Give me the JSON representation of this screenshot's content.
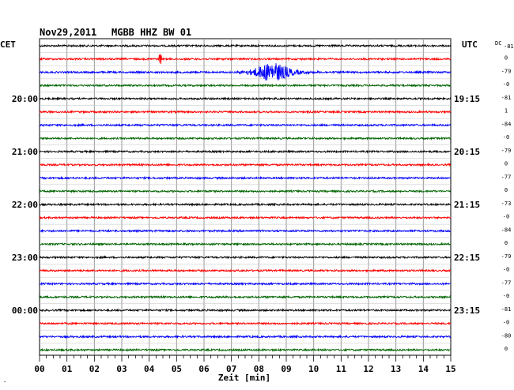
{
  "header": {
    "date": "Nov29,2011",
    "station": "MGBB HHZ BW 01",
    "left_zone": "CET",
    "right_zone": "UTC",
    "dc_label": "DC",
    "dc_header_value": "-81",
    "corner_mark": "-"
  },
  "chart_data": {
    "type": "line",
    "title": "Nov29,2011   MGBB HHZ BW 01",
    "xlabel": "Zeit [min]",
    "ylabel": "",
    "xlim": [
      0,
      15
    ],
    "x_ticks": [
      "00",
      "01",
      "02",
      "03",
      "04",
      "05",
      "06",
      "07",
      "08",
      "09",
      "10",
      "11",
      "12",
      "13",
      "14",
      "15"
    ],
    "grid": true,
    "trace_colors": [
      "#000000",
      "#ff0000",
      "#0000ff",
      "#006400"
    ],
    "traces_per_hour": 4,
    "minutes_per_trace": 15,
    "left_hour_labels": [
      {
        "trace": 4,
        "label": "20:00"
      },
      {
        "trace": 8,
        "label": "21:00"
      },
      {
        "trace": 12,
        "label": "22:00"
      },
      {
        "trace": 16,
        "label": "23:00"
      },
      {
        "trace": 20,
        "label": "00:00"
      }
    ],
    "right_hour_labels": [
      {
        "trace": 4,
        "label": "19:15"
      },
      {
        "trace": 8,
        "label": "20:15"
      },
      {
        "trace": 12,
        "label": "21:15"
      },
      {
        "trace": 16,
        "label": "22:15"
      },
      {
        "trace": 20,
        "label": "23:15"
      }
    ],
    "dc_offsets": [
      "0",
      "-79",
      "-0",
      "-81",
      "1",
      "-84",
      "-0",
      "-79",
      "0",
      "-77",
      "0",
      "-73",
      "-0",
      "-84",
      "0",
      "-79",
      "-0",
      "-77",
      "-0",
      "-81",
      "-0",
      "-80",
      "0"
    ],
    "traces_count": 24,
    "events": [
      {
        "trace": 1,
        "minute": 4.4,
        "type": "spike"
      },
      {
        "trace": 2,
        "minute": 8.5,
        "type": "earthquake"
      }
    ]
  }
}
